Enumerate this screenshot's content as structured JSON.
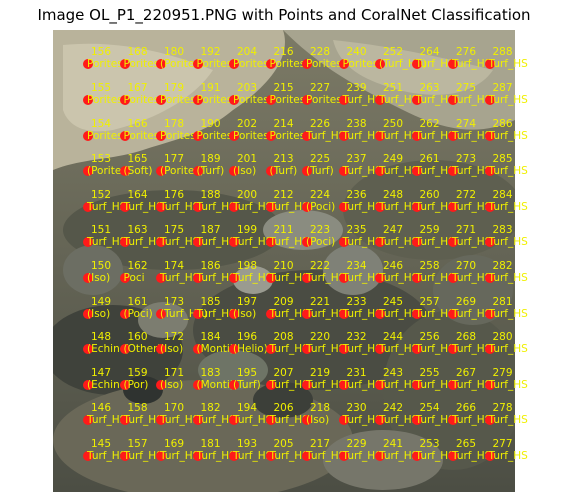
{
  "title": "Image OL_P1_220951.PNG with Points and CoralNet Classification",
  "colors": {
    "point": "#ff1a1a",
    "label": "#f0f000"
  },
  "columns": [
    {
      "ids": [
        145,
        146,
        147,
        148,
        149,
        150,
        151,
        152,
        153,
        154,
        155,
        156
      ],
      "classes": [
        "Turf_HS",
        "Turf_HS",
        "(Echino)",
        "(Echino)",
        "(Iso)",
        "(Iso)",
        "Turf_HS",
        "Turf_HS",
        "(Porites)",
        "Porites",
        "Porites",
        "Porites"
      ]
    },
    {
      "ids": [
        157,
        158,
        159,
        160,
        161,
        162,
        163,
        164,
        165,
        166,
        167,
        168
      ],
      "classes": [
        "Turf_HS",
        "Turf_HS",
        "(Por)",
        "(Other)",
        "(Poci)",
        "Poci",
        "Turf_HS",
        "Turf_HS",
        "(Soft)",
        "Porites",
        "Porites",
        "Porites"
      ]
    },
    {
      "ids": [
        169,
        170,
        171,
        172,
        173,
        174,
        175,
        176,
        177,
        178,
        179,
        180
      ],
      "classes": [
        "Turf_HS",
        "Turf_HS",
        "(Iso)",
        "(Iso)",
        "(Turf_HS)",
        "Turf_HS",
        "Turf_HS",
        "Turf_HS",
        "(Porites)",
        "Porites",
        "Porites",
        "(Porites)"
      ]
    },
    {
      "ids": [
        181,
        182,
        183,
        184,
        185,
        186,
        187,
        188,
        189,
        190,
        191,
        192
      ],
      "classes": [
        "Turf_HS",
        "Turf_HS",
        "(Monti)",
        "(Monti)",
        "Turf_HS",
        "Turf_HS",
        "Turf_HS",
        "Turf_HS",
        "(Turf)",
        "Porites",
        "Porites",
        "Porites"
      ]
    },
    {
      "ids": [
        193,
        194,
        195,
        196,
        197,
        198,
        199,
        200,
        201,
        202,
        203,
        204
      ],
      "classes": [
        "Turf_HS",
        "Turf_HS",
        "(Turf)",
        "(Helio)",
        "(Iso)",
        "Turf_HS",
        "Turf_HS",
        "Turf_HS",
        "(Iso)",
        "Porites",
        "Porites",
        "Porites"
      ]
    },
    {
      "ids": [
        205,
        206,
        207,
        208,
        209,
        210,
        211,
        212,
        213,
        214,
        215,
        216
      ],
      "classes": [
        "Turf_HS",
        "Turf_HS",
        "Turf_HS",
        "Turf_HS",
        "Turf_HS",
        "Turf_HS",
        "Turf_HS",
        "Turf_HS",
        "(Turf)",
        "Porites",
        "Porites",
        "Porites"
      ]
    },
    {
      "ids": [
        217,
        218,
        219,
        220,
        221,
        222,
        223,
        224,
        225,
        226,
        227,
        228
      ],
      "classes": [
        "Turf_HS",
        "(Iso)",
        "Turf_HS",
        "Turf_HS",
        "Turf_HS",
        "Turf_HS",
        "(Poci)",
        "(Poci)",
        "(Turf)",
        "Turf_HS",
        "Porites",
        "Porites"
      ]
    },
    {
      "ids": [
        229,
        230,
        231,
        232,
        233,
        234,
        235,
        236,
        237,
        238,
        239,
        240
      ],
      "classes": [
        "Turf_HS",
        "Turf_HS",
        "Turf_HS",
        "Turf_HS",
        "Turf_HS",
        "Turf_HS",
        "Turf_HS",
        "Turf_HS",
        "Turf_HS",
        "Turf_HS",
        "Turf_HS",
        "Porites"
      ]
    },
    {
      "ids": [
        241,
        242,
        243,
        244,
        245,
        246,
        247,
        248,
        249,
        250,
        251,
        252
      ],
      "classes": [
        "Turf_HS",
        "Turf_HS",
        "Turf_HS",
        "Turf_HS",
        "Turf_HS",
        "Turf_HS",
        "Turf_HS",
        "Turf_HS",
        "Turf_HS",
        "Turf_HS",
        "Turf_HS",
        "(Turf_HS)"
      ]
    },
    {
      "ids": [
        253,
        254,
        255,
        256,
        257,
        258,
        259,
        260,
        261,
        262,
        263,
        264
      ],
      "classes": [
        "Turf_HS",
        "Turf_HS",
        "Turf_HS",
        "Turf_HS",
        "Turf_HS",
        "Turf_HS",
        "Turf_HS",
        "Turf_HS",
        "Turf_HS",
        "Turf_HS",
        "Turf_HS",
        "Turf_HS"
      ]
    },
    {
      "ids": [
        265,
        266,
        267,
        268,
        269,
        270,
        271,
        272,
        273,
        274,
        275,
        276
      ],
      "classes": [
        "Turf_HS",
        "Turf_HS",
        "Turf_HS",
        "Turf_HS",
        "Turf_HS",
        "Turf_HS",
        "Turf_HS",
        "Turf_HS",
        "Turf_HS",
        "Turf_HS",
        "Turf_HS",
        "Turf_HS"
      ]
    },
    {
      "ids": [
        277,
        278,
        279,
        280,
        281,
        282,
        283,
        284,
        285,
        286,
        287,
        288
      ],
      "classes": [
        "Turf_HS",
        "Turf_HS",
        "Turf_HS",
        "Turf_HS",
        "Turf_HS",
        "Turf_HS",
        "Turf_HS",
        "Turf_HS",
        "Turf_HS",
        "Turf_HS",
        "Turf_HS",
        "Turf_HS"
      ]
    }
  ]
}
